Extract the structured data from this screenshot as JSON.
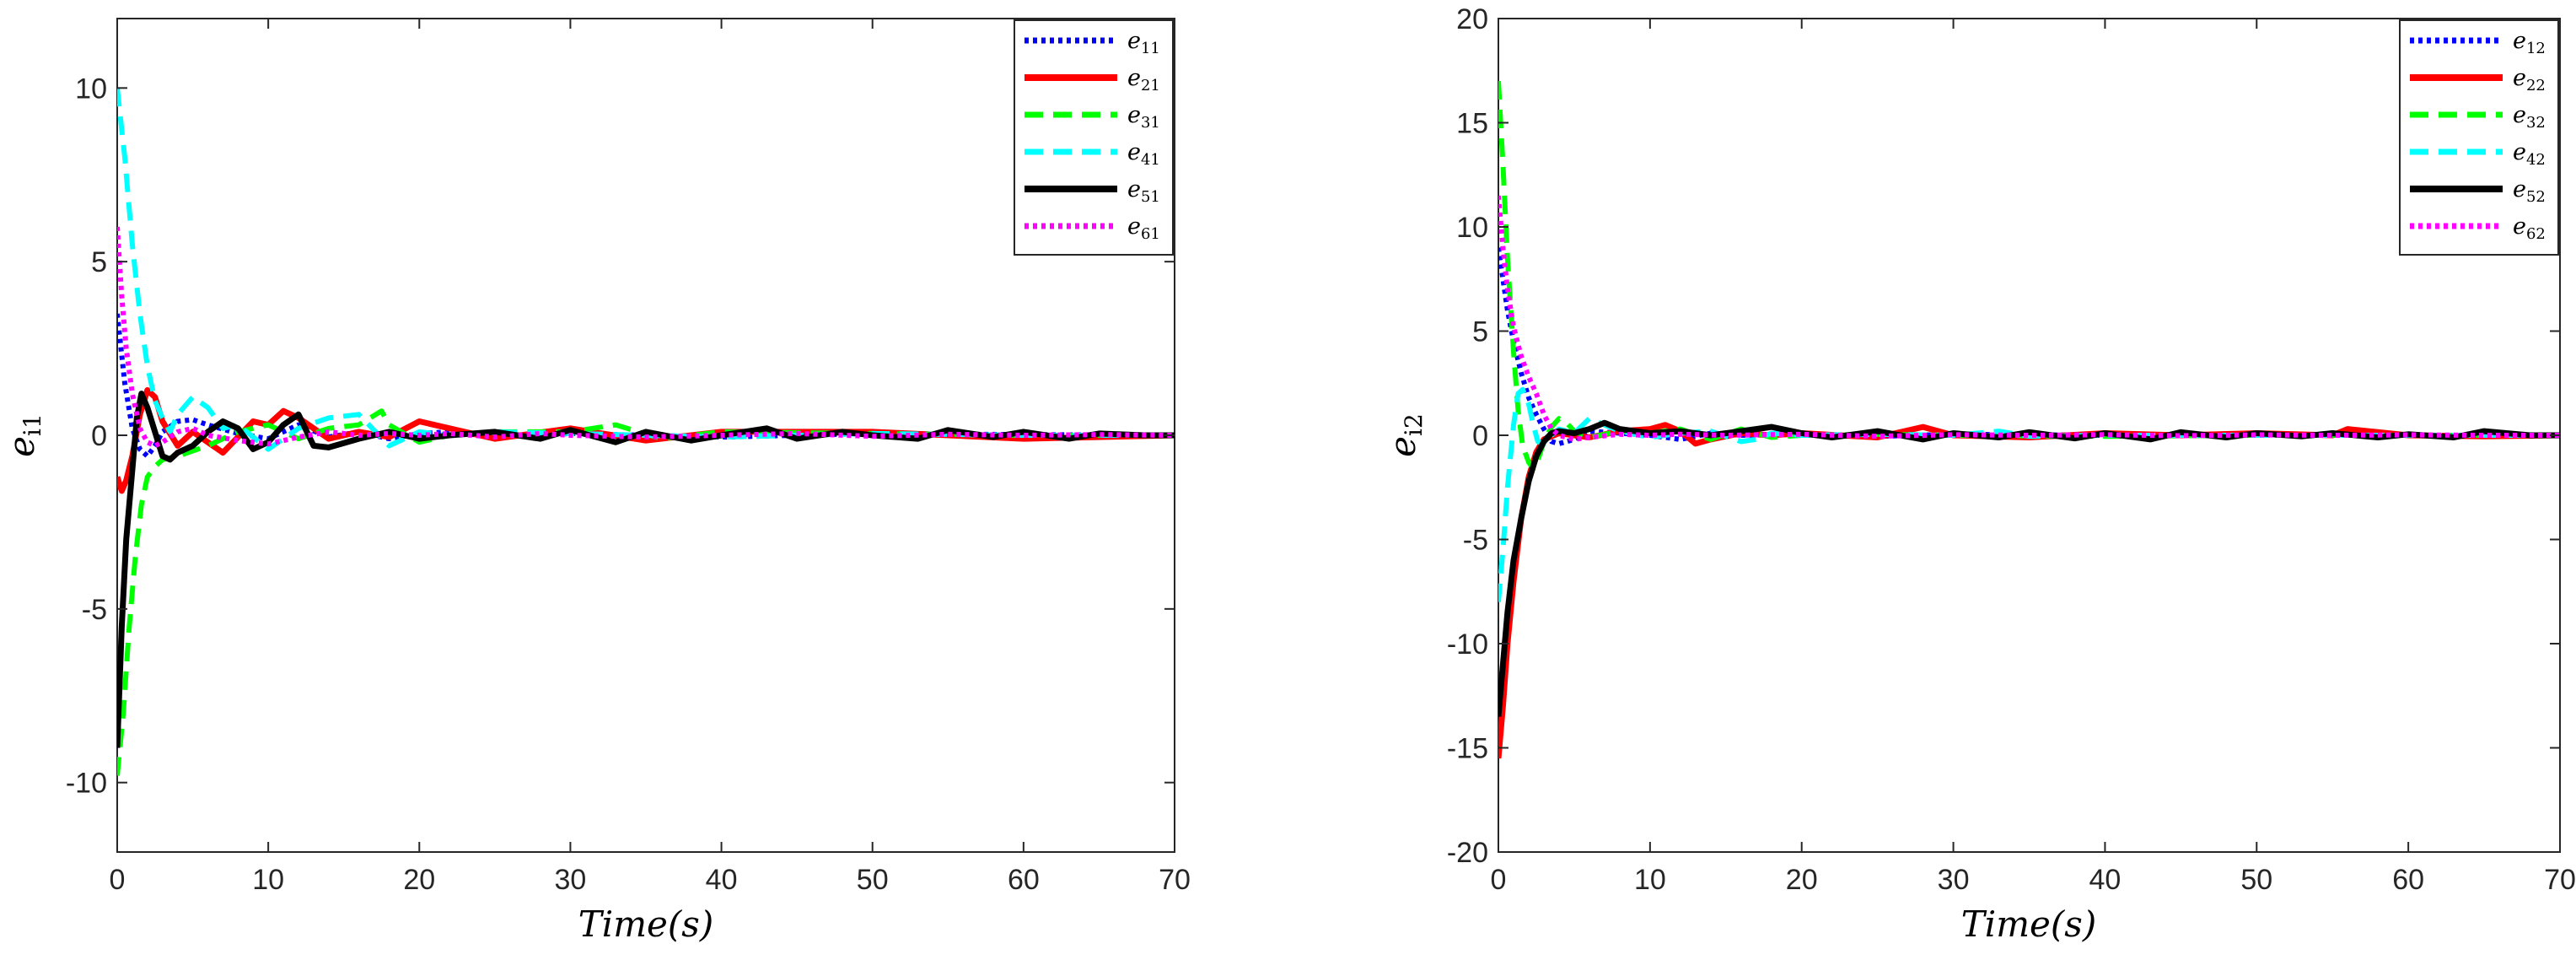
{
  "chart_data": [
    {
      "type": "line",
      "ylabel": "e",
      "ylabel_sub": "i1",
      "xlabel": "Time(s)",
      "xlim": [
        0,
        70
      ],
      "ylim": [
        -12,
        12
      ],
      "xticks": [
        0,
        10,
        20,
        30,
        40,
        50,
        60,
        70
      ],
      "yticks": [
        -10,
        -5,
        0,
        5,
        10
      ],
      "ytick_labels": [
        "-10",
        "-5",
        "0",
        "5",
        "10"
      ],
      "legend_location": "top-right",
      "series": [
        {
          "name": "e",
          "sub": "11",
          "color": "#0000FF",
          "style": "dotted",
          "x": [
            0,
            0.5,
            1,
            1.5,
            2,
            2.5,
            3,
            4,
            5,
            6,
            8,
            10,
            12,
            14,
            16,
            18,
            20,
            22,
            25,
            30,
            40,
            50,
            60,
            70
          ],
          "y": [
            3.5,
            1.5,
            0.2,
            -0.4,
            -0.6,
            -0.3,
            0.1,
            0.4,
            0.45,
            0.3,
            0.05,
            -0.1,
            0.3,
            -0.05,
            0.1,
            -0.1,
            0.05,
            0.1,
            -0.05,
            0.05,
            -0.05,
            0.05,
            0.02,
            0.0
          ]
        },
        {
          "name": "e",
          "sub": "21",
          "color": "#FF0000",
          "style": "solid",
          "x": [
            0,
            0.3,
            0.6,
            1,
            1.5,
            2,
            2.5,
            3,
            4,
            5,
            7,
            9,
            10,
            11,
            12,
            14,
            16,
            18,
            20,
            22,
            25,
            30,
            35,
            40,
            50,
            60,
            70
          ],
          "y": [
            -1.2,
            -1.6,
            -1.3,
            -0.6,
            0.6,
            1.3,
            1.1,
            0.4,
            -0.3,
            0.1,
            -0.5,
            0.4,
            0.3,
            0.7,
            0.5,
            -0.1,
            0.1,
            -0.05,
            0.4,
            0.2,
            -0.1,
            0.2,
            -0.15,
            0.1,
            0.1,
            -0.1,
            0.0
          ]
        },
        {
          "name": "e",
          "sub": "31",
          "color": "#00FF00",
          "style": "dashed",
          "x": [
            0,
            0.4,
            0.8,
            1.2,
            1.6,
            2,
            2.5,
            3,
            4,
            6,
            8,
            10,
            12,
            14,
            16,
            17.5,
            18,
            20,
            22,
            25,
            30,
            33,
            36,
            40,
            50,
            60,
            70
          ],
          "y": [
            -9.8,
            -8,
            -5.5,
            -3.5,
            -2,
            -1.2,
            -0.9,
            -0.7,
            -0.6,
            -0.3,
            0.1,
            0.3,
            -0.1,
            0.2,
            0.3,
            0.7,
            0.3,
            -0.2,
            0.0,
            0.1,
            0.1,
            0.3,
            -0.1,
            0.1,
            0.05,
            0.0,
            0.0
          ]
        },
        {
          "name": "e",
          "sub": "41",
          "color": "#00FFFF",
          "style": "dashed",
          "x": [
            0,
            0.5,
            1,
            1.5,
            2,
            2.5,
            3,
            3.5,
            4,
            5,
            6,
            7,
            8,
            10,
            12,
            14,
            16,
            18,
            20,
            22,
            25,
            30,
            40,
            50,
            60,
            70
          ],
          "y": [
            10,
            8,
            5.5,
            3.5,
            2,
            1.0,
            0.5,
            0.1,
            0.6,
            1.1,
            0.8,
            0.2,
            0.3,
            -0.4,
            0.2,
            0.5,
            0.6,
            -0.3,
            0.1,
            0.0,
            0.1,
            0.05,
            -0.05,
            0.05,
            0.0,
            0.0
          ]
        },
        {
          "name": "e",
          "sub": "51",
          "color": "#000000",
          "style": "solid",
          "x": [
            0,
            0.3,
            0.6,
            1,
            1.3,
            1.6,
            2,
            2.5,
            3,
            3.5,
            4,
            5,
            6,
            7,
            8,
            9,
            10,
            11,
            12,
            13,
            14,
            16,
            18,
            20,
            22,
            25,
            28,
            30,
            33,
            35,
            38,
            40,
            43,
            45,
            48,
            50,
            53,
            55,
            58,
            60,
            63,
            65,
            68,
            70
          ],
          "y": [
            -9,
            -5.5,
            -3,
            -1,
            0.5,
            1.2,
            0.8,
            0.1,
            -0.6,
            -0.7,
            -0.5,
            -0.3,
            0.1,
            0.4,
            0.2,
            -0.4,
            -0.2,
            0.3,
            0.6,
            -0.3,
            -0.35,
            -0.1,
            0.1,
            -0.1,
            0.0,
            0.1,
            -0.1,
            0.15,
            -0.2,
            0.1,
            -0.15,
            0.0,
            0.2,
            -0.1,
            0.1,
            0.0,
            -0.1,
            0.15,
            -0.05,
            0.1,
            -0.1,
            0.05,
            0.0,
            0.0
          ]
        },
        {
          "name": "e",
          "sub": "61",
          "color": "#FF00FF",
          "style": "dotted",
          "x": [
            0,
            0.3,
            0.6,
            1,
            1.5,
            2,
            2.5,
            3,
            4,
            5,
            6,
            8,
            10,
            12,
            14,
            16,
            18,
            20,
            22,
            25,
            28,
            30,
            35,
            40,
            45,
            50,
            55,
            60,
            65,
            70
          ],
          "y": [
            6,
            4,
            2.5,
            1.2,
            0.2,
            -0.2,
            -0.3,
            -0.2,
            0.1,
            0.2,
            0.0,
            -0.15,
            -0.25,
            -0.05,
            0.1,
            0.0,
            0.05,
            0.0,
            0.05,
            -0.05,
            0.05,
            0.0,
            -0.05,
            0.0,
            0.05,
            -0.03,
            0.03,
            0.0,
            0.02,
            0.0
          ]
        }
      ]
    },
    {
      "type": "line",
      "ylabel": "e",
      "ylabel_sub": "i2",
      "xlabel": "Time(s)",
      "xlim": [
        0,
        70
      ],
      "ylim": [
        -20,
        20
      ],
      "xticks": [
        0,
        10,
        20,
        30,
        40,
        50,
        60,
        70
      ],
      "yticks": [
        -20,
        -15,
        -10,
        -5,
        0,
        5,
        10,
        15,
        20
      ],
      "ytick_labels": [
        "-20",
        "-15",
        "-10",
        "-5",
        "0",
        "5",
        "10",
        "15",
        "20"
      ],
      "legend_location": "top-right",
      "series": [
        {
          "name": "e",
          "sub": "12",
          "color": "#0000FF",
          "style": "dotted",
          "x": [
            0,
            0.3,
            0.6,
            1,
            1.5,
            2,
            2.5,
            3,
            3.5,
            4,
            5,
            6,
            8,
            10,
            12,
            14,
            16,
            20,
            25,
            30,
            40,
            50,
            60,
            70
          ],
          "y": [
            9,
            7.5,
            6,
            4.5,
            3,
            1.8,
            1.0,
            0.3,
            -0.3,
            -0.4,
            -0.2,
            0.2,
            0.1,
            0.0,
            -0.2,
            0.1,
            0.0,
            0.05,
            -0.05,
            0.05,
            0.0,
            0.05,
            0.0,
            0.0
          ]
        },
        {
          "name": "e",
          "sub": "22",
          "color": "#FF0000",
          "style": "solid",
          "x": [
            0,
            0.3,
            0.6,
            1,
            1.5,
            2,
            2.5,
            3,
            4,
            5,
            6,
            8,
            10,
            11,
            12,
            13,
            14,
            16,
            18,
            20,
            25,
            28,
            30,
            35,
            40,
            45,
            50,
            55,
            56,
            60,
            65,
            70
          ],
          "y": [
            -15.5,
            -13,
            -10,
            -7,
            -4,
            -2,
            -0.8,
            -0.2,
            0.1,
            0.0,
            -0.1,
            0.2,
            0.3,
            0.5,
            0.2,
            -0.4,
            -0.2,
            0.1,
            0.0,
            0.1,
            -0.1,
            0.4,
            0.0,
            -0.1,
            0.1,
            0.0,
            0.1,
            0.0,
            0.3,
            0.0,
            -0.05,
            0.0
          ]
        },
        {
          "name": "e",
          "sub": "32",
          "color": "#00FF00",
          "style": "dashed",
          "x": [
            0,
            0.3,
            0.6,
            1,
            1.3,
            1.6,
            2,
            2.3,
            2.6,
            3,
            3.5,
            4,
            4.5,
            5,
            6,
            8,
            10,
            12,
            14,
            16,
            18,
            20,
            25,
            30,
            40,
            50,
            60,
            70
          ],
          "y": [
            17,
            13,
            8.5,
            4,
            1.2,
            -0.5,
            -1.3,
            -1.6,
            -1.2,
            -0.3,
            0.4,
            0.8,
            0.6,
            0.2,
            -0.1,
            0.2,
            0.1,
            0.3,
            -0.2,
            0.3,
            -0.1,
            0.0,
            0.05,
            0.0,
            -0.05,
            0.0,
            0.0,
            0.0
          ]
        },
        {
          "name": "e",
          "sub": "42",
          "color": "#00FFFF",
          "style": "dashed",
          "x": [
            0,
            0.3,
            0.6,
            1,
            1.3,
            1.6,
            2,
            2.3,
            2.6,
            3,
            3.5,
            4,
            5,
            6,
            7,
            8,
            10,
            12,
            14,
            16,
            17,
            18,
            20,
            25,
            30,
            33,
            35,
            40,
            50,
            60,
            70
          ],
          "y": [
            -8,
            -5.5,
            -2.5,
            0.5,
            2.0,
            2.2,
            1.5,
            0.5,
            -0.3,
            -0.4,
            0.0,
            0.3,
            0.1,
            0.8,
            0.5,
            0.2,
            -0.1,
            0.1,
            0.2,
            -0.3,
            -0.2,
            0.1,
            0.0,
            0.05,
            0.0,
            0.2,
            -0.05,
            0.0,
            0.0,
            0.0,
            0.0
          ]
        },
        {
          "name": "e",
          "sub": "52",
          "color": "#000000",
          "style": "solid",
          "x": [
            0,
            0.3,
            0.6,
            1,
            1.5,
            2,
            2.5,
            3,
            3.5,
            4,
            5,
            6,
            7,
            8,
            10,
            12,
            14,
            16,
            18,
            20,
            22,
            25,
            28,
            30,
            33,
            35,
            38,
            40,
            43,
            45,
            48,
            50,
            53,
            55,
            58,
            60,
            63,
            65,
            68,
            70
          ],
          "y": [
            -13.5,
            -11,
            -8.5,
            -6,
            -4,
            -2.2,
            -1,
            -0.3,
            0.1,
            0.2,
            0.1,
            0.3,
            0.6,
            0.3,
            0.1,
            0.2,
            0.0,
            0.2,
            0.4,
            0.1,
            -0.1,
            0.2,
            -0.2,
            0.1,
            -0.1,
            0.15,
            -0.15,
            0.1,
            -0.2,
            0.15,
            -0.1,
            0.1,
            -0.05,
            0.1,
            -0.1,
            0.05,
            -0.1,
            0.2,
            0.0,
            0.0
          ]
        },
        {
          "name": "e",
          "sub": "62",
          "color": "#FF00FF",
          "style": "dotted",
          "x": [
            0,
            0.3,
            0.6,
            1,
            1.5,
            2,
            2.5,
            3,
            3.5,
            4,
            5,
            6,
            8,
            10,
            12,
            15,
            20,
            25,
            30,
            35,
            40,
            45,
            50,
            55,
            60,
            65,
            70
          ],
          "y": [
            11.5,
            9,
            7,
            5.2,
            3.8,
            2.8,
            2.0,
            1.0,
            0.3,
            0.0,
            -0.2,
            -0.1,
            0.05,
            0.0,
            0.05,
            0.0,
            0.05,
            -0.05,
            0.03,
            0.0,
            0.03,
            -0.02,
            0.02,
            0.0,
            0.02,
            0.0,
            0.0
          ]
        }
      ]
    }
  ]
}
